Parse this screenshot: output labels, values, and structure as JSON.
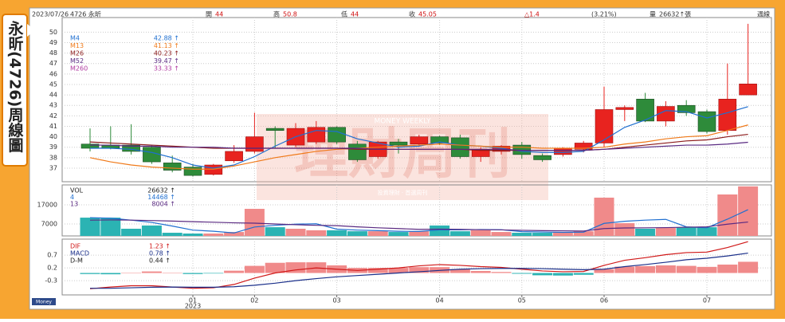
{
  "side_title": "永昕(4726)周線圖",
  "header": {
    "date": "2023/07/26",
    "symbol": "4726 永昕",
    "quotes": [
      {
        "label": "開",
        "value": 44
      },
      {
        "label": "高",
        "value": 50.8
      },
      {
        "label": "低",
        "value": 44
      },
      {
        "label": "收",
        "value": 45.05
      }
    ],
    "change": "△1.4",
    "change_pct": "(3.21%)",
    "volume_label": "量",
    "volume": "26632↑張",
    "period": "週線"
  },
  "watermark": {
    "top": "MONEY WEEKLY",
    "main": "理財周刊",
    "sub": "投資理財 · 首選周刊"
  },
  "logo": "Money",
  "chart_data": [
    {
      "type": "candlestick",
      "ylim": [
        35.7,
        51.4
      ],
      "yticks": [
        37,
        38,
        39,
        40,
        41,
        42,
        43,
        44,
        45,
        46,
        47,
        48,
        49,
        50
      ],
      "grid": true,
      "up_color": "#e8231f",
      "down_color": "#2e8b3a",
      "open": [
        39.3,
        39.2,
        39.2,
        39.0,
        37.5,
        37.1,
        36.4,
        37.7,
        38.6,
        40.8,
        39.2,
        39.5,
        40.9,
        39.3,
        38.1,
        39.5,
        39.3,
        40.0,
        39.9,
        38.1,
        38.6,
        39.2,
        38.2,
        38.3,
        38.8,
        39.4,
        42.6,
        43.6,
        41.5,
        43.0,
        42.4,
        40.6,
        44
      ],
      "high": [
        40.8,
        41.0,
        41.2,
        39.2,
        38.2,
        37.4,
        37.4,
        39.2,
        42.3,
        41.0,
        41.3,
        41.5,
        41.0,
        39.6,
        39.6,
        39.8,
        40.2,
        40.1,
        40.2,
        39.0,
        39.2,
        39.5,
        38.4,
        39.0,
        39.6,
        44.8,
        43.0,
        44.2,
        43.4,
        43.5,
        42.6,
        47.0,
        50.8
      ],
      "low": [
        38.6,
        38.8,
        38.3,
        37.4,
        36.6,
        36.2,
        36.3,
        37.5,
        38.4,
        38.9,
        39.0,
        39.3,
        39.3,
        37.6,
        37.9,
        38.4,
        39.1,
        39.2,
        37.9,
        37.6,
        38.3,
        37.9,
        37.6,
        38.1,
        38.5,
        39.0,
        41.5,
        41.4,
        41.0,
        42.0,
        40.3,
        40.2,
        44
      ],
      "close": [
        38.9,
        38.9,
        38.6,
        37.6,
        36.8,
        36.3,
        37.3,
        38.6,
        40.0,
        40.6,
        40.8,
        40.9,
        39.5,
        37.8,
        39.5,
        39.2,
        40.0,
        39.4,
        38.1,
        38.8,
        39.1,
        38.3,
        37.8,
        38.9,
        39.4,
        42.6,
        42.8,
        41.5,
        42.9,
        42.3,
        40.5,
        43.6,
        45.05
      ],
      "series": [
        {
          "name": "M4",
          "legend_value": "42.88 ↑",
          "color": "#1f6fd0",
          "values": [
            38.9,
            38.9,
            38.8,
            38.5,
            38.0,
            37.3,
            37.0,
            37.3,
            38.1,
            39.1,
            40.0,
            40.6,
            40.5,
            39.8,
            39.4,
            39.0,
            39.1,
            39.5,
            39.2,
            39.1,
            38.9,
            38.6,
            38.5,
            38.5,
            38.6,
            39.7,
            40.9,
            41.6,
            42.5,
            42.4,
            41.8,
            42.3,
            42.88
          ]
        },
        {
          "name": "M13",
          "legend_value": "41.13 ↑",
          "color": "#f07a1a",
          "values": [
            38.0,
            37.6,
            37.3,
            37.1,
            37.0,
            36.9,
            36.9,
            37.2,
            37.6,
            38.0,
            38.3,
            38.6,
            38.8,
            38.9,
            39.0,
            39.1,
            39.2,
            39.3,
            39.2,
            39.1,
            39.0,
            39.0,
            38.9,
            38.9,
            38.9,
            39.0,
            39.3,
            39.5,
            39.8,
            40.0,
            40.1,
            40.6,
            41.13
          ]
        },
        {
          "name": "M26",
          "legend_value": "40.23 ↑",
          "color": "#8b1a1a",
          "values": [
            39.5,
            39.4,
            39.3,
            39.2,
            39.1,
            39.0,
            38.9,
            38.9,
            38.9,
            38.9,
            38.9,
            38.9,
            38.9,
            38.8,
            38.8,
            38.8,
            38.8,
            38.8,
            38.8,
            38.7,
            38.7,
            38.7,
            38.7,
            38.7,
            38.7,
            38.8,
            39.0,
            39.2,
            39.4,
            39.6,
            39.7,
            40.0,
            40.23
          ]
        },
        {
          "name": "M52",
          "legend_value": "39.47 ↑",
          "color": "#5a2a82",
          "values": [
            39.2,
            39.2,
            39.1,
            39.1,
            39.0,
            39.0,
            39.0,
            38.9,
            38.9,
            38.9,
            38.9,
            38.9,
            38.9,
            38.9,
            38.8,
            38.8,
            38.8,
            38.8,
            38.8,
            38.8,
            38.8,
            38.7,
            38.7,
            38.7,
            38.7,
            38.8,
            38.9,
            39.0,
            39.1,
            39.2,
            39.2,
            39.3,
            39.47
          ]
        },
        {
          "name": "M260",
          "legend_value": "33.33 ↑",
          "color": "#b03aa0"
        }
      ]
    },
    {
      "type": "volume",
      "ylim": [
        750,
        27400
      ],
      "yticks": [
        7000,
        17000
      ],
      "grid": true,
      "up_color": "#f08a8a",
      "down_color": "#2bb3b3",
      "series": [
        {
          "name": "VOL",
          "legend_value": "26632 ↑",
          "color": "#222222",
          "values": [
            10300,
            10300,
            4500,
            6200,
            2400,
            2000,
            2000,
            2800,
            14900,
            5300,
            4500,
            3700,
            3700,
            3200,
            3200,
            2800,
            3200,
            6200,
            3200,
            3700,
            2800,
            2400,
            2400,
            2800,
            3200,
            20750,
            7400,
            4500,
            4900,
            5300,
            5300,
            22400,
            26632
          ]
        },
        {
          "name": "4",
          "legend_value": "14468 ↑",
          "color": "#1f6fd0",
          "values": [
            10300,
            10000,
            9000,
            7800,
            5900,
            3800,
            3200,
            2300,
            5400,
            6300,
            6900,
            7100,
            4300,
            3800,
            3500,
            3200,
            3100,
            3900,
            3900,
            4100,
            4000,
            3000,
            2800,
            2600,
            2700,
            7300,
            8400,
            9000,
            9400,
            5500,
            5000,
            9500,
            14468
          ]
        },
        {
          "name": "13",
          "legend_value": "8004 ↑",
          "color": "#5a2a82",
          "values": [
            9000,
            9100,
            9000,
            8800,
            8500,
            8200,
            7900,
            7600,
            7400,
            7000,
            6600,
            6300,
            6100,
            5500,
            5000,
            4600,
            4200,
            4300,
            4200,
            4000,
            3900,
            3700,
            3500,
            3400,
            3300,
            4600,
            4900,
            5000,
            5100,
            5300,
            5500,
            6900,
            8004
          ]
        }
      ]
    },
    {
      "type": "macd",
      "ylim": [
        -0.86,
        1.33
      ],
      "yticks": [
        -0.3,
        0.2,
        0.7
      ],
      "grid": true,
      "up_color": "#f08a8a",
      "down_color": "#2bb3b3",
      "categories": [
        null,
        null,
        null,
        null,
        null,
        "01",
        null,
        null,
        "02",
        null,
        null,
        null,
        "03",
        null,
        null,
        null,
        null,
        "04",
        null,
        null,
        null,
        "05",
        null,
        null,
        null,
        "06",
        null,
        null,
        null,
        null,
        "07",
        null,
        null
      ],
      "x_year": "2023",
      "series": [
        {
          "name": "DIF",
          "legend_value": "1.23 ↑",
          "color": "#d01818",
          "values": [
            -0.62,
            -0.55,
            -0.5,
            -0.5,
            -0.55,
            -0.6,
            -0.58,
            -0.45,
            -0.2,
            0.0,
            0.12,
            0.2,
            0.15,
            0.1,
            0.15,
            0.2,
            0.28,
            0.33,
            0.3,
            0.25,
            0.22,
            0.15,
            0.08,
            0.05,
            0.06,
            0.3,
            0.5,
            0.6,
            0.72,
            0.8,
            0.82,
            1.0,
            1.23
          ]
        },
        {
          "name": "MACD",
          "legend_value": "0.78 ↑",
          "color": "#1a2f8a",
          "values": [
            -0.6,
            -0.6,
            -0.58,
            -0.56,
            -0.55,
            -0.56,
            -0.56,
            -0.54,
            -0.48,
            -0.4,
            -0.3,
            -0.22,
            -0.15,
            -0.1,
            -0.05,
            0.0,
            0.05,
            0.1,
            0.15,
            0.17,
            0.18,
            0.18,
            0.17,
            0.15,
            0.13,
            0.15,
            0.25,
            0.33,
            0.42,
            0.52,
            0.58,
            0.67,
            0.78
          ]
        },
        {
          "name": "D-M",
          "legend_value": "0.44 ↑",
          "color": "#222222",
          "values": [
            -0.04,
            -0.05,
            0.0,
            0.06,
            0.0,
            -0.04,
            -0.02,
            0.09,
            0.28,
            0.4,
            0.42,
            0.42,
            0.3,
            0.2,
            0.2,
            0.2,
            0.23,
            0.23,
            0.15,
            0.08,
            0.04,
            -0.03,
            -0.09,
            -0.1,
            -0.07,
            0.15,
            0.25,
            0.27,
            0.3,
            0.28,
            0.24,
            0.33,
            0.44
          ]
        }
      ]
    }
  ]
}
